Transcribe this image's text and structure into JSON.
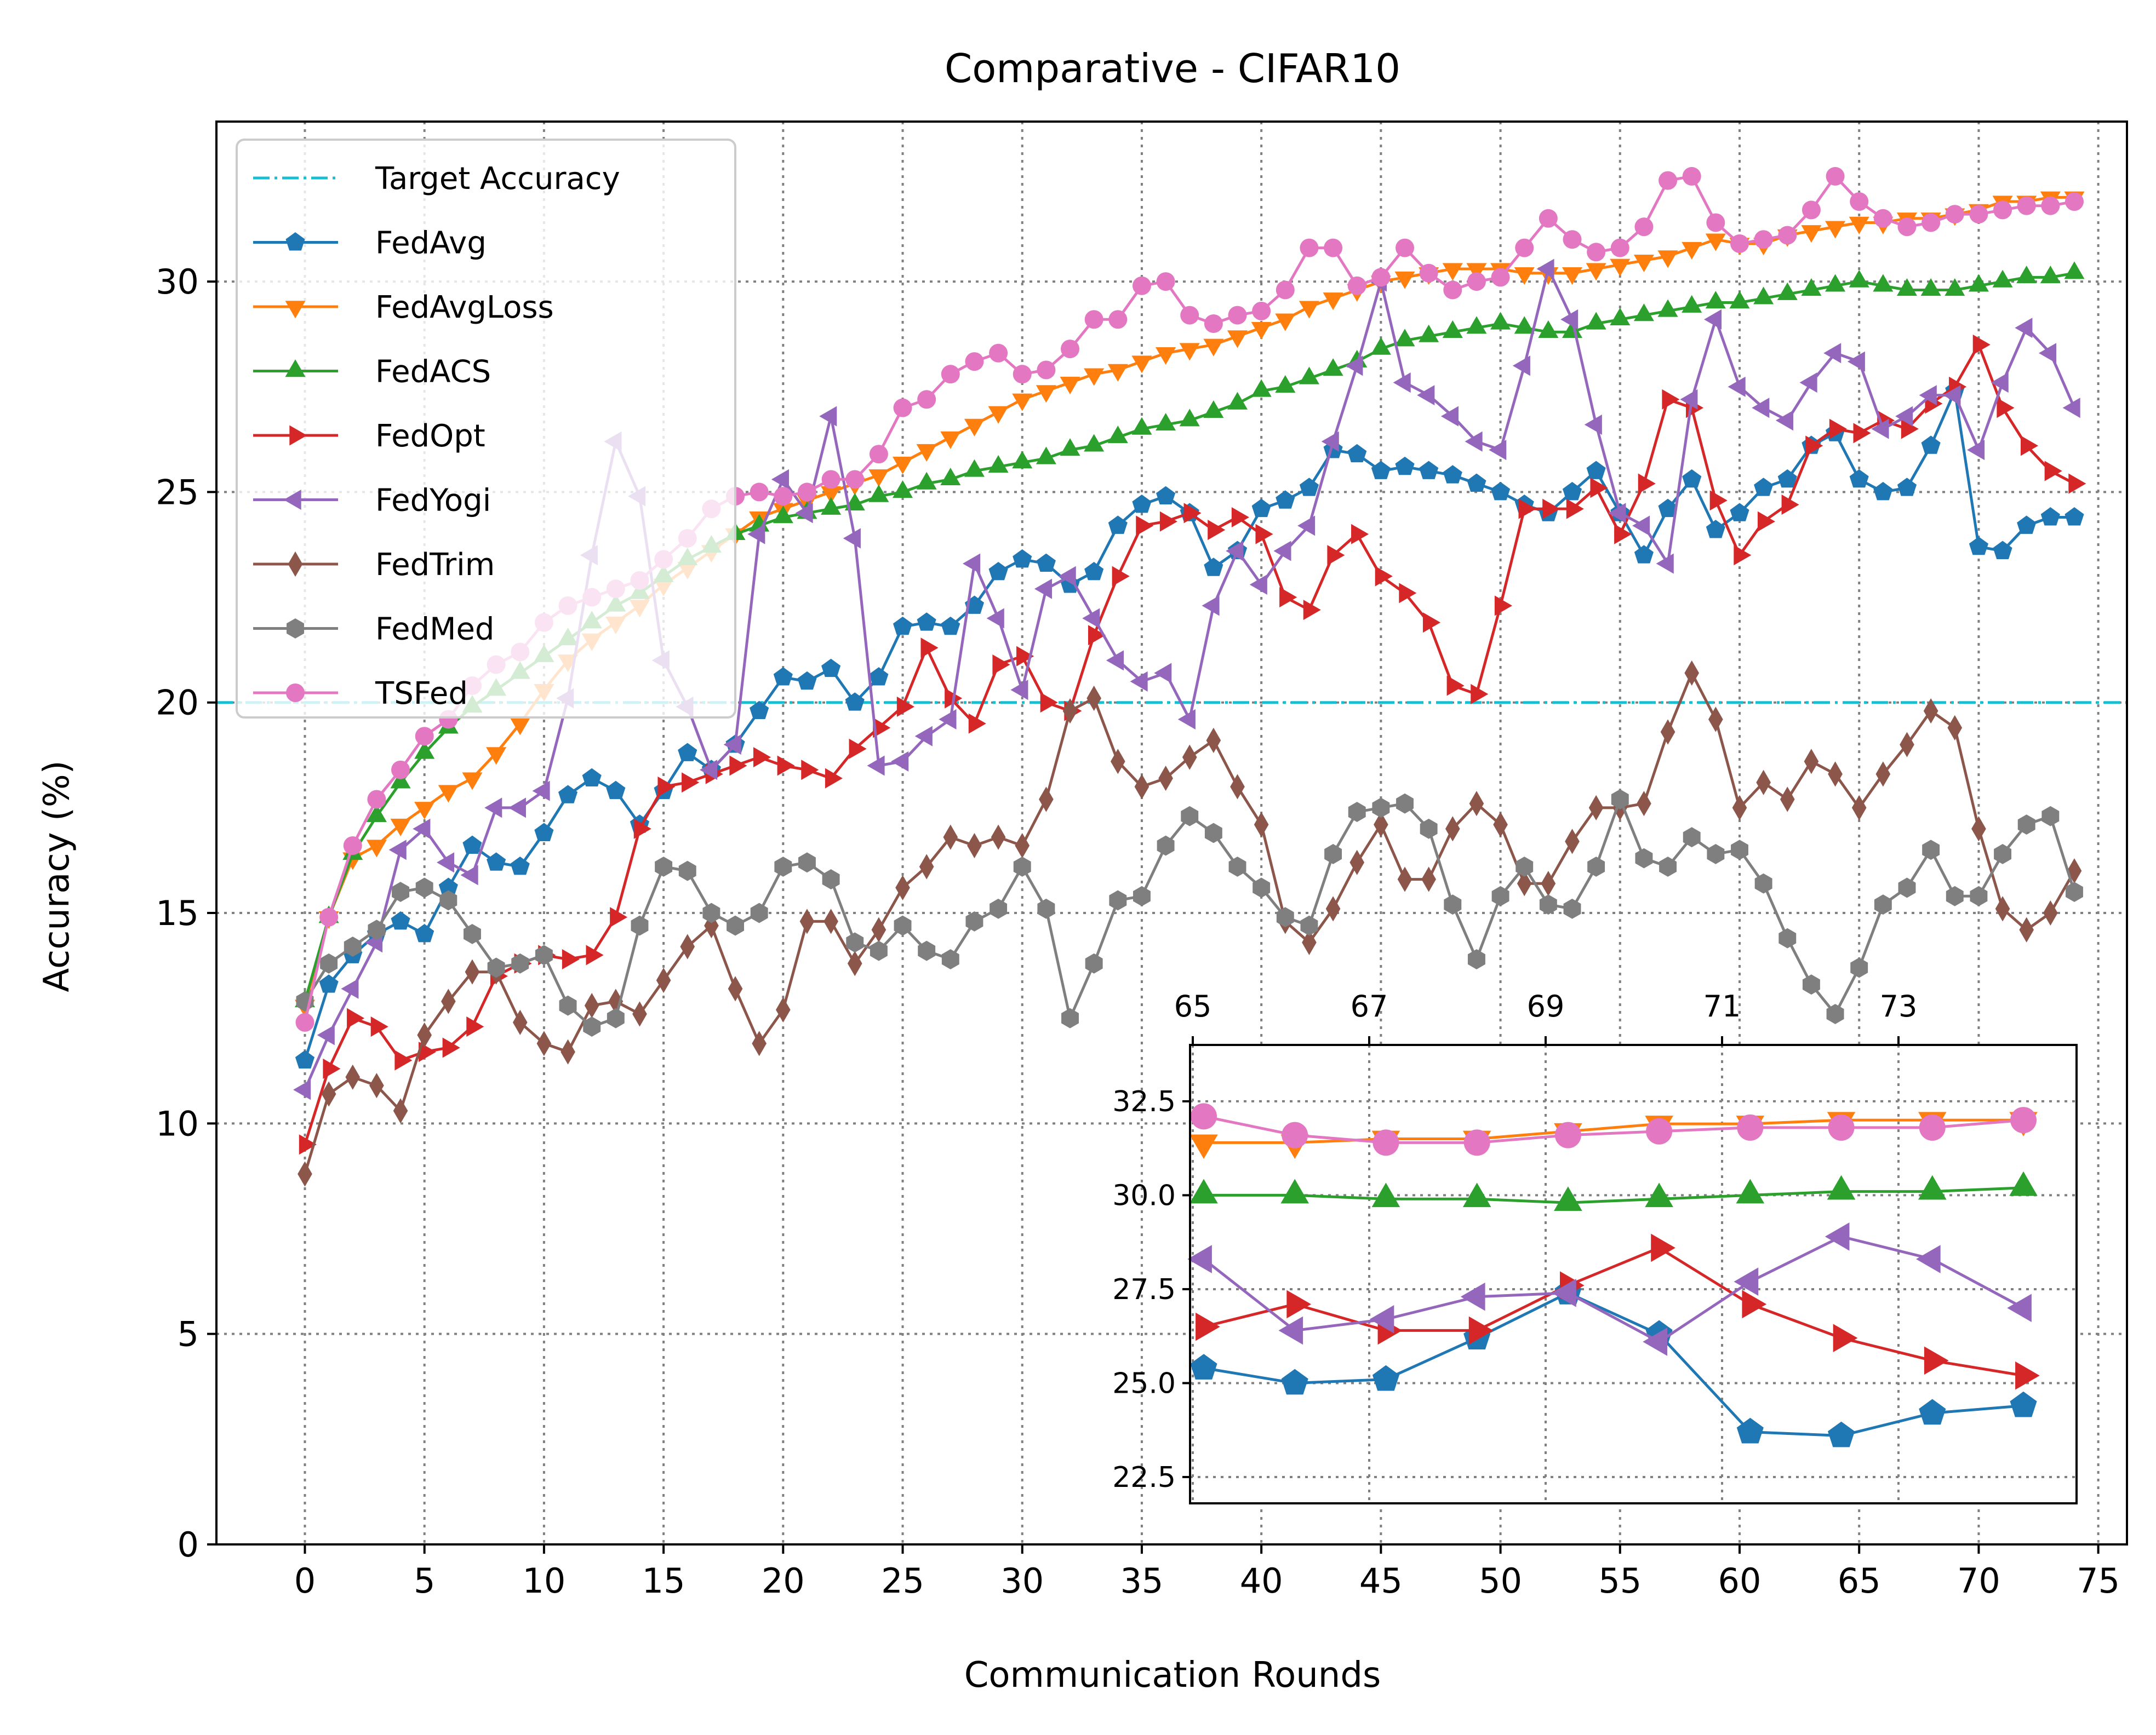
{
  "chart_data": {
    "type": "line",
    "title": "Comparative - CIFAR10",
    "xlabel": "Communication Rounds",
    "ylabel": "Accuracy (%)",
    "xlim": [
      -3.7,
      76.2
    ],
    "ylim": [
      0,
      33.8
    ],
    "xticks": [
      0,
      5,
      10,
      15,
      20,
      25,
      30,
      35,
      40,
      45,
      50,
      55,
      60,
      65,
      70,
      75
    ],
    "xtick_labels": [
      "0",
      "5",
      "10",
      "15",
      "20",
      "25",
      "30",
      "35",
      "40",
      "45",
      "50",
      "55",
      "60",
      "65",
      "70",
      "75"
    ],
    "yticks": [
      0,
      5,
      10,
      15,
      20,
      25,
      30
    ],
    "ytick_labels": [
      "0",
      "5",
      "10",
      "15",
      "20",
      "25",
      "30"
    ],
    "grid": true,
    "legend_position": "top-left",
    "target": {
      "name": "Target Accuracy",
      "value": 20,
      "color": "#17becf"
    },
    "x": [
      0,
      1,
      2,
      3,
      4,
      5,
      6,
      7,
      8,
      9,
      10,
      11,
      12,
      13,
      14,
      15,
      16,
      17,
      18,
      19,
      20,
      21,
      22,
      23,
      24,
      25,
      26,
      27,
      28,
      29,
      30,
      31,
      32,
      33,
      34,
      35,
      36,
      37,
      38,
      39,
      40,
      41,
      42,
      43,
      44,
      45,
      46,
      47,
      48,
      49,
      50,
      51,
      52,
      53,
      54,
      55,
      56,
      57,
      58,
      59,
      60,
      61,
      62,
      63,
      64,
      65,
      66,
      67,
      68,
      69,
      70,
      71,
      72,
      73,
      74
    ],
    "series": [
      {
        "name": "FedAvg",
        "color": "#1f77b4",
        "marker": "pentagon",
        "values": [
          11.5,
          13.3,
          14.0,
          14.5,
          14.8,
          14.5,
          15.6,
          16.6,
          16.2,
          16.1,
          16.9,
          17.8,
          18.2,
          17.9,
          17.1,
          17.9,
          18.8,
          18.4,
          19.0,
          19.8,
          20.6,
          20.5,
          20.8,
          20.0,
          20.6,
          21.8,
          21.9,
          21.8,
          22.3,
          23.1,
          23.4,
          23.3,
          22.8,
          23.1,
          24.2,
          24.7,
          24.9,
          24.5,
          23.2,
          23.6,
          24.6,
          24.8,
          25.1,
          26.0,
          25.9,
          25.5,
          25.6,
          25.5,
          25.4,
          25.2,
          25.0,
          24.7,
          24.5,
          25.0,
          25.5,
          24.5,
          23.5,
          24.6,
          25.3,
          24.1,
          24.5,
          25.1,
          25.3,
          26.1,
          26.4,
          25.3,
          25.0,
          25.1,
          26.1,
          27.4,
          23.7,
          23.6,
          24.2,
          24.4,
          24.4
        ]
      },
      {
        "name": "FedAvgLoss",
        "color": "#ff7f0e",
        "marker": "triangle-down",
        "values": [
          12.8,
          14.9,
          16.3,
          16.6,
          17.1,
          17.5,
          17.9,
          18.2,
          18.8,
          19.5,
          20.3,
          21.0,
          21.5,
          21.9,
          22.3,
          22.8,
          23.2,
          23.6,
          24.0,
          24.4,
          24.6,
          24.8,
          25.0,
          25.2,
          25.4,
          25.7,
          26.0,
          26.3,
          26.6,
          26.9,
          27.2,
          27.4,
          27.6,
          27.8,
          27.9,
          28.1,
          28.3,
          28.4,
          28.5,
          28.7,
          28.9,
          29.1,
          29.4,
          29.6,
          29.8,
          30.0,
          30.1,
          30.2,
          30.3,
          30.3,
          30.3,
          30.2,
          30.2,
          30.2,
          30.3,
          30.4,
          30.5,
          30.6,
          30.8,
          31.0,
          30.9,
          30.9,
          31.1,
          31.2,
          31.3,
          31.4,
          31.4,
          31.5,
          31.5,
          31.6,
          31.7,
          31.9,
          31.9,
          32.0,
          32.0
        ]
      },
      {
        "name": "FedACS",
        "color": "#2ca02c",
        "marker": "triangle-up",
        "values": [
          12.9,
          14.9,
          16.4,
          17.3,
          18.1,
          18.8,
          19.4,
          19.9,
          20.3,
          20.7,
          21.1,
          21.5,
          21.9,
          22.3,
          22.6,
          23.0,
          23.4,
          23.7,
          24.0,
          24.2,
          24.4,
          24.5,
          24.6,
          24.7,
          24.9,
          25.0,
          25.2,
          25.3,
          25.5,
          25.6,
          25.7,
          25.8,
          26.0,
          26.1,
          26.3,
          26.5,
          26.6,
          26.7,
          26.9,
          27.1,
          27.4,
          27.5,
          27.7,
          27.9,
          28.1,
          28.4,
          28.6,
          28.7,
          28.8,
          28.9,
          29.0,
          28.9,
          28.8,
          28.8,
          29.0,
          29.1,
          29.2,
          29.3,
          29.4,
          29.5,
          29.5,
          29.6,
          29.7,
          29.8,
          29.9,
          30.0,
          29.9,
          29.8,
          29.8,
          29.8,
          29.9,
          30.0,
          30.1,
          30.1,
          30.2
        ]
      },
      {
        "name": "FedOpt",
        "color": "#d62728",
        "marker": "triangle-right",
        "values": [
          9.5,
          11.3,
          12.5,
          12.3,
          11.5,
          11.7,
          11.8,
          12.3,
          13.5,
          13.8,
          14.0,
          13.9,
          14.0,
          14.9,
          17.0,
          18.0,
          18.1,
          18.3,
          18.5,
          18.7,
          18.5,
          18.4,
          18.2,
          18.9,
          19.4,
          19.9,
          21.3,
          20.1,
          19.5,
          20.9,
          21.1,
          20.0,
          19.8,
          21.6,
          23.0,
          24.2,
          24.3,
          24.5,
          24.1,
          24.4,
          24.0,
          22.5,
          22.2,
          23.5,
          24.0,
          23.0,
          22.6,
          21.9,
          20.4,
          20.2,
          22.3,
          24.6,
          24.6,
          24.6,
          25.1,
          24.0,
          25.2,
          27.2,
          27.0,
          24.8,
          23.5,
          24.3,
          24.7,
          26.1,
          26.5,
          26.4,
          26.7,
          26.5,
          27.1,
          27.5,
          28.5,
          27.0,
          26.1,
          25.5,
          25.2
        ]
      },
      {
        "name": "FedYogi",
        "color": "#9467bd",
        "marker": "triangle-left",
        "values": [
          10.8,
          12.1,
          13.2,
          14.3,
          16.5,
          17.0,
          16.2,
          15.9,
          17.5,
          17.5,
          17.9,
          20.1,
          23.5,
          26.2,
          24.9,
          21.0,
          19.9,
          18.4,
          19.0,
          24.0,
          25.3,
          24.5,
          26.8,
          23.9,
          18.5,
          18.6,
          19.2,
          19.6,
          23.3,
          22.0,
          20.3,
          22.7,
          23.0,
          22.0,
          21.0,
          20.5,
          20.7,
          19.6,
          22.3,
          23.6,
          22.8,
          23.6,
          24.2,
          26.2,
          28.0,
          30.0,
          27.6,
          27.3,
          26.8,
          26.2,
          26.0,
          28.0,
          30.3,
          29.1,
          26.6,
          24.5,
          24.2,
          23.3,
          27.2,
          29.1,
          27.5,
          27.0,
          26.7,
          27.6,
          28.3,
          28.1,
          26.5,
          26.8,
          27.3,
          27.3,
          26.0,
          27.6,
          28.9,
          28.3,
          27.0
        ]
      },
      {
        "name": "FedTrim",
        "color": "#8c564b",
        "marker": "diamond",
        "values": [
          8.8,
          10.7,
          11.1,
          10.9,
          10.3,
          12.1,
          12.9,
          13.6,
          13.6,
          12.4,
          11.9,
          11.7,
          12.8,
          12.9,
          12.6,
          13.4,
          14.2,
          14.7,
          13.2,
          11.9,
          12.7,
          14.8,
          14.8,
          13.8,
          14.6,
          15.6,
          16.1,
          16.8,
          16.6,
          16.8,
          16.6,
          17.7,
          19.8,
          20.1,
          18.6,
          18.0,
          18.2,
          18.7,
          19.1,
          18.0,
          17.1,
          14.8,
          14.3,
          15.1,
          16.2,
          17.1,
          15.8,
          15.8,
          17.0,
          17.6,
          17.1,
          15.7,
          15.7,
          16.7,
          17.5,
          17.5,
          17.6,
          19.3,
          20.7,
          19.6,
          17.5,
          18.1,
          17.7,
          18.6,
          18.3,
          17.5,
          18.3,
          19.0,
          19.8,
          19.4,
          17.0,
          15.1,
          14.6,
          15.0,
          16.0
        ]
      },
      {
        "name": "FedMed",
        "color": "#7f7f7f",
        "marker": "hexagon",
        "values": [
          12.9,
          13.8,
          14.2,
          14.6,
          15.5,
          15.6,
          15.3,
          14.5,
          13.7,
          13.8,
          14.0,
          12.8,
          12.3,
          12.5,
          14.7,
          16.1,
          16.0,
          15.0,
          14.7,
          15.0,
          16.1,
          16.2,
          15.8,
          14.3,
          14.1,
          14.7,
          14.1,
          13.9,
          14.8,
          15.1,
          16.1,
          15.1,
          12.5,
          13.8,
          15.3,
          15.4,
          16.6,
          17.3,
          16.9,
          16.1,
          15.6,
          14.9,
          14.7,
          16.4,
          17.4,
          17.5,
          17.6,
          17.0,
          15.2,
          13.9,
          15.4,
          16.1,
          15.2,
          15.1,
          16.1,
          17.7,
          16.3,
          16.1,
          16.8,
          16.4,
          16.5,
          15.7,
          14.4,
          13.3,
          12.6,
          13.7,
          15.2,
          15.6,
          16.5,
          15.4,
          15.4,
          16.4,
          17.1,
          17.3,
          15.5
        ]
      },
      {
        "name": "TSFed",
        "color": "#e377c2",
        "marker": "circle",
        "values": [
          12.4,
          14.9,
          16.6,
          17.7,
          18.4,
          19.2,
          19.6,
          20.4,
          20.9,
          21.2,
          21.9,
          22.3,
          22.5,
          22.7,
          22.9,
          23.4,
          23.9,
          24.6,
          24.9,
          25.0,
          24.9,
          25.0,
          25.3,
          25.3,
          25.9,
          27.0,
          27.2,
          27.8,
          28.1,
          28.3,
          27.8,
          27.9,
          28.4,
          29.1,
          29.1,
          29.9,
          30.0,
          29.2,
          29.0,
          29.2,
          29.3,
          29.8,
          30.8,
          30.8,
          29.9,
          30.1,
          30.8,
          30.2,
          29.8,
          30.0,
          30.1,
          30.8,
          31.5,
          31.0,
          30.7,
          30.8,
          31.3,
          32.4,
          32.5,
          31.4,
          30.9,
          31.0,
          31.1,
          31.7,
          32.5,
          31.9,
          31.5,
          31.3,
          31.4,
          31.6,
          31.6,
          31.7,
          31.8,
          31.8,
          31.9
        ]
      }
    ],
    "inset": {
      "x_start": 65,
      "xticks": [
        65,
        67,
        69,
        71,
        73
      ],
      "xtick_labels": [
        "65",
        "67",
        "69",
        "71",
        "73"
      ],
      "yticks": [
        22.5,
        25.0,
        27.5,
        30.0,
        32.5
      ],
      "ytick_labels": [
        "22.5",
        "25.0",
        "27.5",
        "30.0",
        "32.5"
      ],
      "ylim": [
        21.8,
        34.0
      ],
      "series": [
        {
          "name": "FedAvg",
          "values": [
            25.4,
            25.0,
            25.1,
            26.2,
            27.4,
            26.3,
            23.7,
            23.6,
            24.2,
            24.4
          ]
        },
        {
          "name": "FedAvgLoss",
          "values": [
            31.4,
            31.4,
            31.5,
            31.5,
            31.7,
            31.9,
            31.9,
            32.0,
            32.0,
            32.0
          ]
        },
        {
          "name": "FedACS",
          "values": [
            30.0,
            30.0,
            29.9,
            29.9,
            29.8,
            29.9,
            30.0,
            30.1,
            30.1,
            30.2
          ]
        },
        {
          "name": "FedOpt",
          "values": [
            26.5,
            27.1,
            26.4,
            26.4,
            27.6,
            28.6,
            27.1,
            26.2,
            25.6,
            25.2
          ]
        },
        {
          "name": "FedYogi",
          "values": [
            28.3,
            26.4,
            26.7,
            27.3,
            27.4,
            26.1,
            27.7,
            28.9,
            28.3,
            27.0
          ]
        },
        {
          "name": "TSFed",
          "values": [
            32.1,
            31.6,
            31.4,
            31.4,
            31.6,
            31.7,
            31.8,
            31.8,
            31.8,
            32.0
          ]
        }
      ]
    }
  }
}
